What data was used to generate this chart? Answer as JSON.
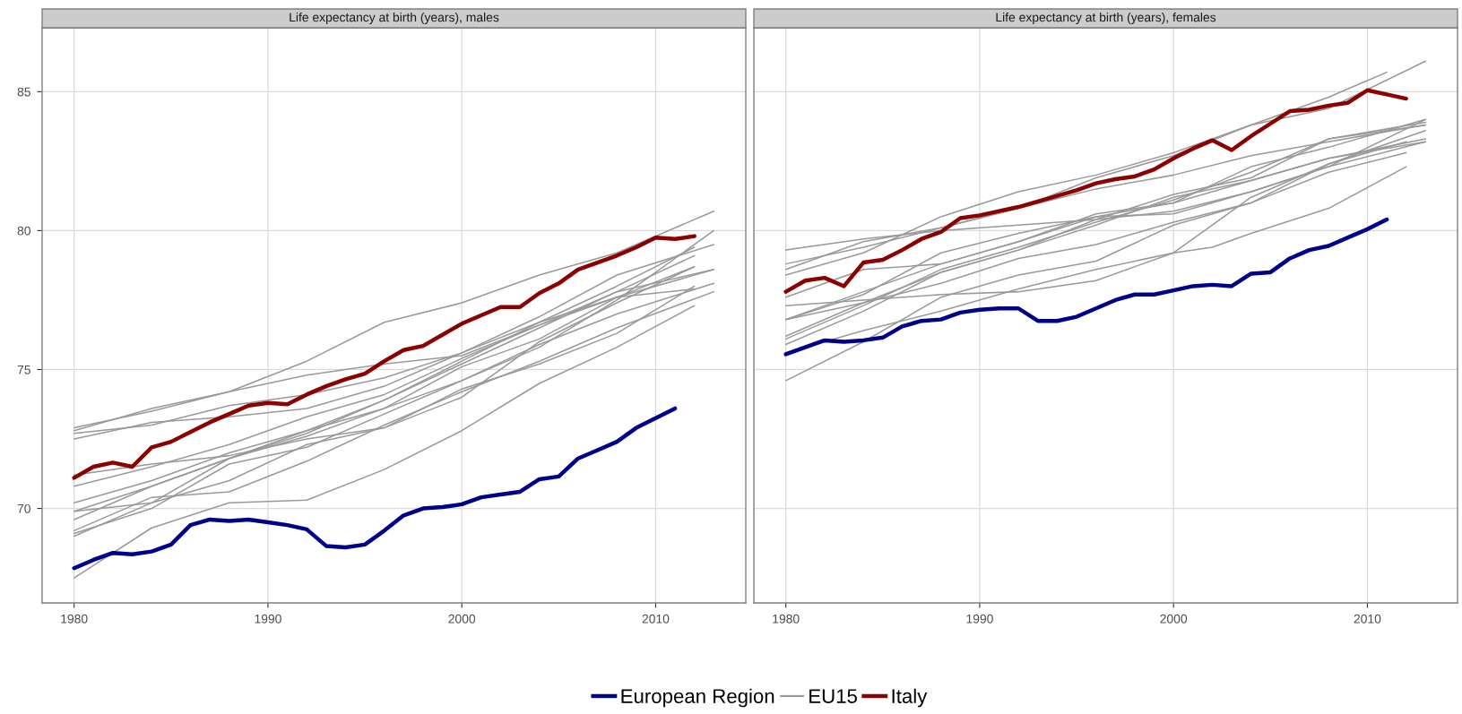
{
  "chart_data": [
    {
      "type": "line",
      "title": "Life expectancy at birth (years), males",
      "xlim": [
        1978.35,
        2014.65
      ],
      "ylim": [
        66.6,
        87.3
      ],
      "xticks": [
        1980,
        1990,
        2000,
        2010
      ],
      "yticks": [
        70,
        75,
        80,
        85
      ],
      "grid": true,
      "legend": "bottom",
      "series": [
        {
          "name": "European Region",
          "color": "#00008b",
          "x": [
            1980,
            1981,
            1982,
            1983,
            1984,
            1985,
            1986,
            1987,
            1988,
            1989,
            1990,
            1991,
            1992,
            1993,
            1994,
            1995,
            1996,
            1997,
            1998,
            1999,
            2000,
            2001,
            2002,
            2003,
            2004,
            2005,
            2006,
            2007,
            2008,
            2009,
            2010,
            2011
          ],
          "values": [
            67.85,
            68.15,
            68.4,
            68.35,
            68.45,
            68.7,
            69.4,
            69.6,
            69.55,
            69.6,
            69.5,
            69.4,
            69.25,
            68.65,
            68.6,
            68.7,
            69.2,
            69.75,
            70.0,
            70.05,
            70.15,
            70.4,
            70.5,
            70.6,
            71.05,
            71.15,
            71.8,
            72.1,
            72.4,
            72.9,
            73.25,
            73.6
          ]
        },
        {
          "name": "EU15",
          "color": "#999999",
          "x": [
            1980,
            1984,
            1988,
            1992,
            1996,
            2000,
            2004,
            2008,
            2013
          ],
          "values": [
            72.8,
            73.6,
            74.2,
            75.3,
            76.7,
            77.4,
            78.4,
            79.2,
            80.7
          ]
        },
        {
          "color": "#999999",
          "x": [
            1980,
            1984,
            1988,
            1992,
            1996,
            2000,
            2004,
            2008,
            2013
          ],
          "values": [
            72.7,
            73.0,
            73.7,
            74.1,
            74.7,
            75.6,
            76.9,
            78.4,
            79.5
          ]
        },
        {
          "color": "#999999",
          "x": [
            1980,
            1984,
            1988,
            1992,
            1996,
            2000,
            2004,
            2008,
            2012
          ],
          "values": [
            72.9,
            73.5,
            74.2,
            74.8,
            75.2,
            75.5,
            76.6,
            77.6,
            77.9
          ]
        },
        {
          "color": "#999999",
          "x": [
            1980,
            1984,
            1988,
            1992,
            1996,
            2000,
            2004,
            2008,
            2012
          ],
          "values": [
            72.5,
            73.1,
            73.3,
            73.6,
            74.4,
            75.6,
            76.7,
            78.0,
            79.4
          ]
        },
        {
          "color": "#999999",
          "x": [
            1980,
            1984,
            1988,
            1992,
            1996,
            2000,
            2004,
            2008,
            2012
          ],
          "values": [
            71.2,
            71.6,
            71.9,
            72.5,
            72.9,
            74.3,
            75.2,
            76.3,
            78.0
          ]
        },
        {
          "color": "#999999",
          "x": [
            1980,
            1984,
            1988,
            1992,
            1996,
            2000,
            2004,
            2008,
            2012
          ],
          "values": [
            70.8,
            71.5,
            72.3,
            73.3,
            74.1,
            75.4,
            76.6,
            77.8,
            79.1
          ]
        },
        {
          "color": "#999999",
          "x": [
            1980,
            1984,
            1988,
            1992,
            1996,
            2000,
            2004,
            2008,
            2012
          ],
          "values": [
            70.2,
            71.0,
            72.0,
            72.8,
            73.9,
            75.3,
            76.7,
            77.6,
            78.7
          ]
        },
        {
          "color": "#999999",
          "x": [
            1980,
            1984,
            1988,
            1992,
            1996,
            2000,
            2004,
            2008,
            2013
          ],
          "values": [
            69.6,
            70.8,
            71.8,
            72.6,
            73.6,
            75.1,
            76.1,
            77.6,
            78.6
          ]
        },
        {
          "color": "#999999",
          "x": [
            1980,
            1984,
            1988,
            1992,
            1996,
            2000,
            2004,
            2008,
            2013
          ],
          "values": [
            69.9,
            70.8,
            71.8,
            72.8,
            73.6,
            74.6,
            75.9,
            77.0,
            78.1
          ]
        },
        {
          "color": "#999999",
          "x": [
            1980,
            1984,
            1988,
            1992,
            1996,
            2000,
            2004,
            2008,
            2013
          ],
          "values": [
            69.0,
            70.2,
            71.8,
            72.7,
            73.9,
            75.2,
            76.5,
            77.8,
            78.6
          ]
        },
        {
          "color": "#999999",
          "x": [
            1980,
            1984,
            1988,
            1992,
            1996,
            2000,
            2004,
            2008,
            2012
          ],
          "values": [
            69.9,
            70.2,
            71.0,
            72.3,
            72.9,
            74.0,
            76.0,
            77.4,
            78.7
          ]
        },
        {
          "color": "#999999",
          "x": [
            1980,
            1984,
            1988,
            1992,
            1996,
            2000,
            2004,
            2008,
            2013
          ],
          "values": [
            69.1,
            70.0,
            71.6,
            72.2,
            73.4,
            74.6,
            75.8,
            77.5,
            80.0
          ]
        },
        {
          "color": "#999999",
          "x": [
            1980,
            1984,
            1988,
            1992,
            1996,
            2000,
            2004,
            2008,
            2013
          ],
          "values": [
            69.2,
            70.4,
            70.6,
            71.7,
            73.0,
            74.2,
            75.3,
            76.5,
            77.8
          ]
        },
        {
          "color": "#999999",
          "x": [
            1980,
            1984,
            1988,
            1992,
            1996,
            2000,
            2004,
            2008,
            2012
          ],
          "values": [
            67.5,
            69.3,
            70.2,
            70.3,
            71.4,
            72.8,
            74.5,
            75.8,
            77.3
          ]
        },
        {
          "name": "Italy",
          "color": "#8b0000",
          "x": [
            1980,
            1981,
            1982,
            1983,
            1984,
            1985,
            1986,
            1987,
            1988,
            1989,
            1990,
            1991,
            1992,
            1993,
            1994,
            1995,
            1996,
            1997,
            1998,
            1999,
            2000,
            2001,
            2002,
            2003,
            2004,
            2005,
            2006,
            2007,
            2008,
            2009,
            2010,
            2011,
            2012
          ],
          "values": [
            71.1,
            71.5,
            71.65,
            71.5,
            72.2,
            72.4,
            72.75,
            73.1,
            73.4,
            73.7,
            73.8,
            73.75,
            74.1,
            74.4,
            74.65,
            74.85,
            75.3,
            75.7,
            75.85,
            76.25,
            76.65,
            76.95,
            77.25,
            77.25,
            77.75,
            78.1,
            78.6,
            78.85,
            79.1,
            79.4,
            79.75,
            79.7,
            79.8
          ]
        }
      ]
    },
    {
      "type": "line",
      "title": "Life expectancy at birth (years), females",
      "xlim": [
        1978.35,
        2014.65
      ],
      "ylim": [
        66.6,
        87.3
      ],
      "xticks": [
        1980,
        1990,
        2000,
        2010
      ],
      "yticks": [
        70,
        75,
        80,
        85
      ],
      "grid": true,
      "tick_labels": "x",
      "series": [
        {
          "name": "European Region",
          "color": "#00008b",
          "x": [
            1980,
            1981,
            1982,
            1983,
            1984,
            1985,
            1986,
            1987,
            1988,
            1989,
            1990,
            1991,
            1992,
            1993,
            1994,
            1995,
            1996,
            1997,
            1998,
            1999,
            2000,
            2001,
            2002,
            2003,
            2004,
            2005,
            2006,
            2007,
            2008,
            2009,
            2010,
            2011
          ],
          "values": [
            75.55,
            75.8,
            76.05,
            76.0,
            76.05,
            76.15,
            76.55,
            76.75,
            76.8,
            77.05,
            77.15,
            77.2,
            77.2,
            76.75,
            76.75,
            76.9,
            77.2,
            77.5,
            77.7,
            77.7,
            77.85,
            78.0,
            78.05,
            78.0,
            78.45,
            78.5,
            79.0,
            79.3,
            79.45,
            79.75,
            80.05,
            80.4
          ]
        },
        {
          "name": "EU15",
          "color": "#999999",
          "x": [
            1980,
            1984,
            1988,
            1992,
            1996,
            2000,
            2004,
            2008,
            2013
          ],
          "values": [
            78.6,
            79.6,
            80.1,
            80.8,
            81.9,
            82.7,
            83.8,
            84.4,
            86.1
          ]
        },
        {
          "color": "#999999",
          "x": [
            1980,
            1984,
            1988,
            1992,
            1996,
            2000,
            2004,
            2008,
            2011
          ],
          "values": [
            78.4,
            79.2,
            80.5,
            81.4,
            82.0,
            82.8,
            83.8,
            84.8,
            85.7
          ]
        },
        {
          "color": "#999999",
          "x": [
            1980,
            1984,
            1988,
            1992,
            1996,
            2000,
            2004,
            2008,
            2013
          ],
          "values": [
            79.3,
            79.7,
            80.0,
            80.2,
            80.4,
            80.7,
            81.4,
            82.3,
            83.2
          ]
        },
        {
          "color": "#999999",
          "x": [
            1980,
            1984,
            1988,
            1992,
            1996,
            2000,
            2004,
            2008,
            2013
          ],
          "values": [
            78.8,
            79.4,
            80.1,
            80.8,
            81.5,
            82.0,
            82.7,
            83.2,
            83.8
          ]
        },
        {
          "color": "#999999",
          "x": [
            1980,
            1984,
            1988,
            1992,
            1996,
            2000,
            2004,
            2008,
            2013
          ],
          "values": [
            76.8,
            77.7,
            79.2,
            79.9,
            80.5,
            80.6,
            81.4,
            82.3,
            84.0
          ]
        },
        {
          "color": "#999999",
          "x": [
            1980,
            1984,
            1988,
            1992,
            1996,
            2000,
            2004,
            2008,
            2013
          ],
          "values": [
            77.6,
            78.6,
            78.8,
            79.6,
            80.5,
            81.0,
            82.3,
            83.0,
            84.0
          ]
        },
        {
          "color": "#999999",
          "x": [
            1980,
            1984,
            1988,
            1992,
            1996,
            2000,
            2002,
            2004,
            2008,
            2012
          ],
          "values": [
            77.3,
            77.5,
            77.7,
            77.8,
            78.2,
            79.2,
            79.4,
            79.9,
            80.8,
            82.3
          ]
        },
        {
          "color": "#999999",
          "x": [
            1980,
            1984,
            1988,
            1992,
            1996,
            2000,
            2004,
            2008,
            2012
          ],
          "values": [
            76.8,
            77.4,
            78.1,
            79.0,
            79.5,
            80.3,
            81.0,
            82.1,
            82.8
          ]
        },
        {
          "color": "#999999",
          "x": [
            1980,
            1984,
            1988,
            1992,
            1996,
            2000,
            2004,
            2008,
            2013
          ],
          "values": [
            76.2,
            77.4,
            78.5,
            79.3,
            80.2,
            81.2,
            81.8,
            82.6,
            83.2
          ]
        },
        {
          "color": "#999999",
          "x": [
            1980,
            1984,
            1988,
            1992,
            1996,
            2000,
            2004,
            2008,
            2013
          ],
          "values": [
            76.8,
            77.8,
            78.8,
            79.6,
            80.6,
            81.0,
            81.8,
            82.6,
            83.3
          ]
        },
        {
          "color": "#999999",
          "x": [
            1980,
            1984,
            1988,
            1992,
            1996,
            2000,
            2004,
            2008,
            2013
          ],
          "values": [
            76.1,
            77.3,
            78.6,
            79.4,
            80.3,
            81.1,
            82.1,
            83.3,
            83.8
          ]
        },
        {
          "color": "#999999",
          "x": [
            1980,
            1984,
            1988,
            1992,
            1996,
            2000,
            2004,
            2008,
            2012
          ],
          "values": [
            75.6,
            76.4,
            77.1,
            77.9,
            78.6,
            79.2,
            81.2,
            82.4,
            83.2
          ]
        },
        {
          "color": "#999999",
          "x": [
            1980,
            1984,
            1988,
            1992,
            1996,
            2000,
            2004,
            2008,
            2013
          ],
          "values": [
            75.9,
            77.1,
            78.5,
            79.3,
            80.4,
            81.3,
            81.9,
            83.3,
            83.9
          ]
        },
        {
          "color": "#999999",
          "x": [
            1980,
            1984,
            1988,
            1992,
            1996,
            2000,
            2004,
            2008,
            2013
          ],
          "values": [
            74.6,
            76.0,
            77.6,
            78.4,
            78.9,
            80.2,
            81.0,
            82.4,
            83.6
          ]
        },
        {
          "name": "Italy",
          "color": "#8b0000",
          "x": [
            1980,
            1981,
            1982,
            1983,
            1984,
            1985,
            1986,
            1987,
            1988,
            1989,
            1990,
            1991,
            1992,
            1993,
            1994,
            1995,
            1996,
            1997,
            1998,
            1999,
            2000,
            2001,
            2002,
            2003,
            2004,
            2005,
            2006,
            2007,
            2008,
            2009,
            2010,
            2011,
            2012
          ],
          "values": [
            77.8,
            78.2,
            78.3,
            78.0,
            78.85,
            78.95,
            79.3,
            79.7,
            79.95,
            80.45,
            80.55,
            80.7,
            80.85,
            81.05,
            81.25,
            81.45,
            81.7,
            81.85,
            81.95,
            82.2,
            82.6,
            82.95,
            83.25,
            82.9,
            83.4,
            83.85,
            84.3,
            84.35,
            84.5,
            84.6,
            85.05,
            84.9,
            84.75
          ]
        }
      ]
    }
  ]
}
